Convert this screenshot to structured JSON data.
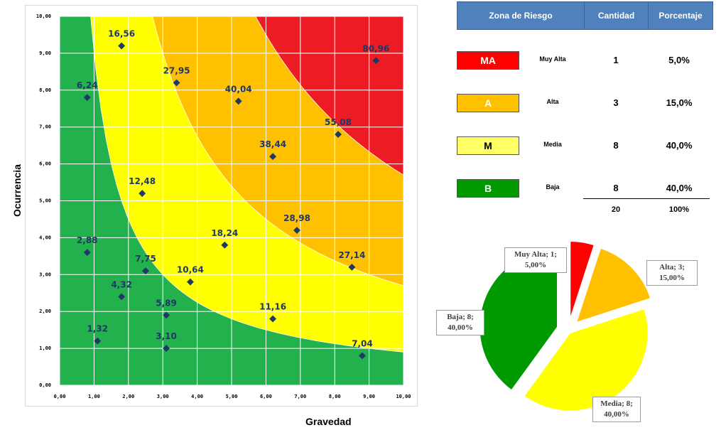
{
  "chart_data": [
    {
      "type": "scatter",
      "title": "",
      "xlabel": "Gravedad",
      "ylabel": "Ocurrencia",
      "xlim": [
        0,
        10
      ],
      "ylim": [
        0,
        10
      ],
      "x_ticks": [
        "0,00",
        "1,00",
        "2,00",
        "3,00",
        "4,00",
        "5,00",
        "6,00",
        "7,00",
        "8,00",
        "9,00",
        "10,00"
      ],
      "y_ticks": [
        "0,00",
        "1,00",
        "2,00",
        "3,00",
        "4,00",
        "5,00",
        "6,00",
        "7,00",
        "8,00",
        "9,00",
        "10,00"
      ],
      "grid": true,
      "zone_boundaries": [
        {
          "name": "B/M",
          "product": 9
        },
        {
          "name": "M/A",
          "product": 27
        },
        {
          "name": "A/MA",
          "product": 57
        }
      ],
      "zone_colors": {
        "MA": "#ed1c24",
        "A": "#ffc000",
        "M": "#ffff00",
        "B": "#22b14c"
      },
      "marker_color": "#1f3864",
      "points": [
        {
          "x": 1.8,
          "y": 9.2,
          "label": "16,56"
        },
        {
          "x": 0.8,
          "y": 7.8,
          "label": "6,24"
        },
        {
          "x": 3.4,
          "y": 8.2,
          "label": "27,95"
        },
        {
          "x": 5.2,
          "y": 7.7,
          "label": "40,04"
        },
        {
          "x": 9.2,
          "y": 8.8,
          "label": "80,96"
        },
        {
          "x": 8.1,
          "y": 6.8,
          "label": "55,08"
        },
        {
          "x": 6.2,
          "y": 6.2,
          "label": "38,44"
        },
        {
          "x": 2.4,
          "y": 5.2,
          "label": "12,48"
        },
        {
          "x": 6.9,
          "y": 4.2,
          "label": "28,98"
        },
        {
          "x": 4.8,
          "y": 3.8,
          "label": "18,24"
        },
        {
          "x": 0.8,
          "y": 3.6,
          "label": "2,88"
        },
        {
          "x": 2.5,
          "y": 3.1,
          "label": "7,75"
        },
        {
          "x": 8.5,
          "y": 3.2,
          "label": "27,14"
        },
        {
          "x": 3.8,
          "y": 2.8,
          "label": "10,64"
        },
        {
          "x": 1.8,
          "y": 2.4,
          "label": "4,32"
        },
        {
          "x": 3.1,
          "y": 1.9,
          "label": "5,89"
        },
        {
          "x": 6.2,
          "y": 1.8,
          "label": "11,16"
        },
        {
          "x": 1.1,
          "y": 1.2,
          "label": "1,32"
        },
        {
          "x": 3.1,
          "y": 1.0,
          "label": "3,10"
        },
        {
          "x": 8.8,
          "y": 0.8,
          "label": "7,04"
        }
      ]
    },
    {
      "type": "pie",
      "slices": [
        {
          "name": "Muy Alta",
          "value": 1,
          "label_line1": "Muy Alta; 1;",
          "label_line2": "5,00%",
          "color": "#ff0000"
        },
        {
          "name": "Alta",
          "value": 3,
          "label_line1": "Alta; 3;",
          "label_line2": "15,00%",
          "color": "#ffc000"
        },
        {
          "name": "Media",
          "value": 8,
          "label_line1": "Media; 8;",
          "label_line2": "40,00%",
          "color": "#ffff00"
        },
        {
          "name": "Baja",
          "value": 8,
          "label_line1": "Baja; 8;",
          "label_line2": "40,00%",
          "color": "#009900"
        }
      ]
    }
  ],
  "table": {
    "headers": [
      "Zona de Riesgo",
      "Cantidad",
      "Porcentaje"
    ],
    "rows": [
      {
        "code": "MA",
        "name": "Muy Alta",
        "count": "1",
        "pct": "5,0%",
        "color": "#ff0000",
        "text_color": "#ffffff"
      },
      {
        "code": "A",
        "name": "Alta",
        "count": "3",
        "pct": "15,0%",
        "color": "#ffc000",
        "text_color": "#ffffff"
      },
      {
        "code": "M",
        "name": "Media",
        "count": "8",
        "pct": "40,0%",
        "color": "#ffff66",
        "text_color": "#000000"
      },
      {
        "code": "B",
        "name": "Baja",
        "count": "8",
        "pct": "40,0%",
        "color": "#009900",
        "text_color": "#ffffff"
      }
    ],
    "total_count": "20",
    "total_pct": "100%"
  }
}
